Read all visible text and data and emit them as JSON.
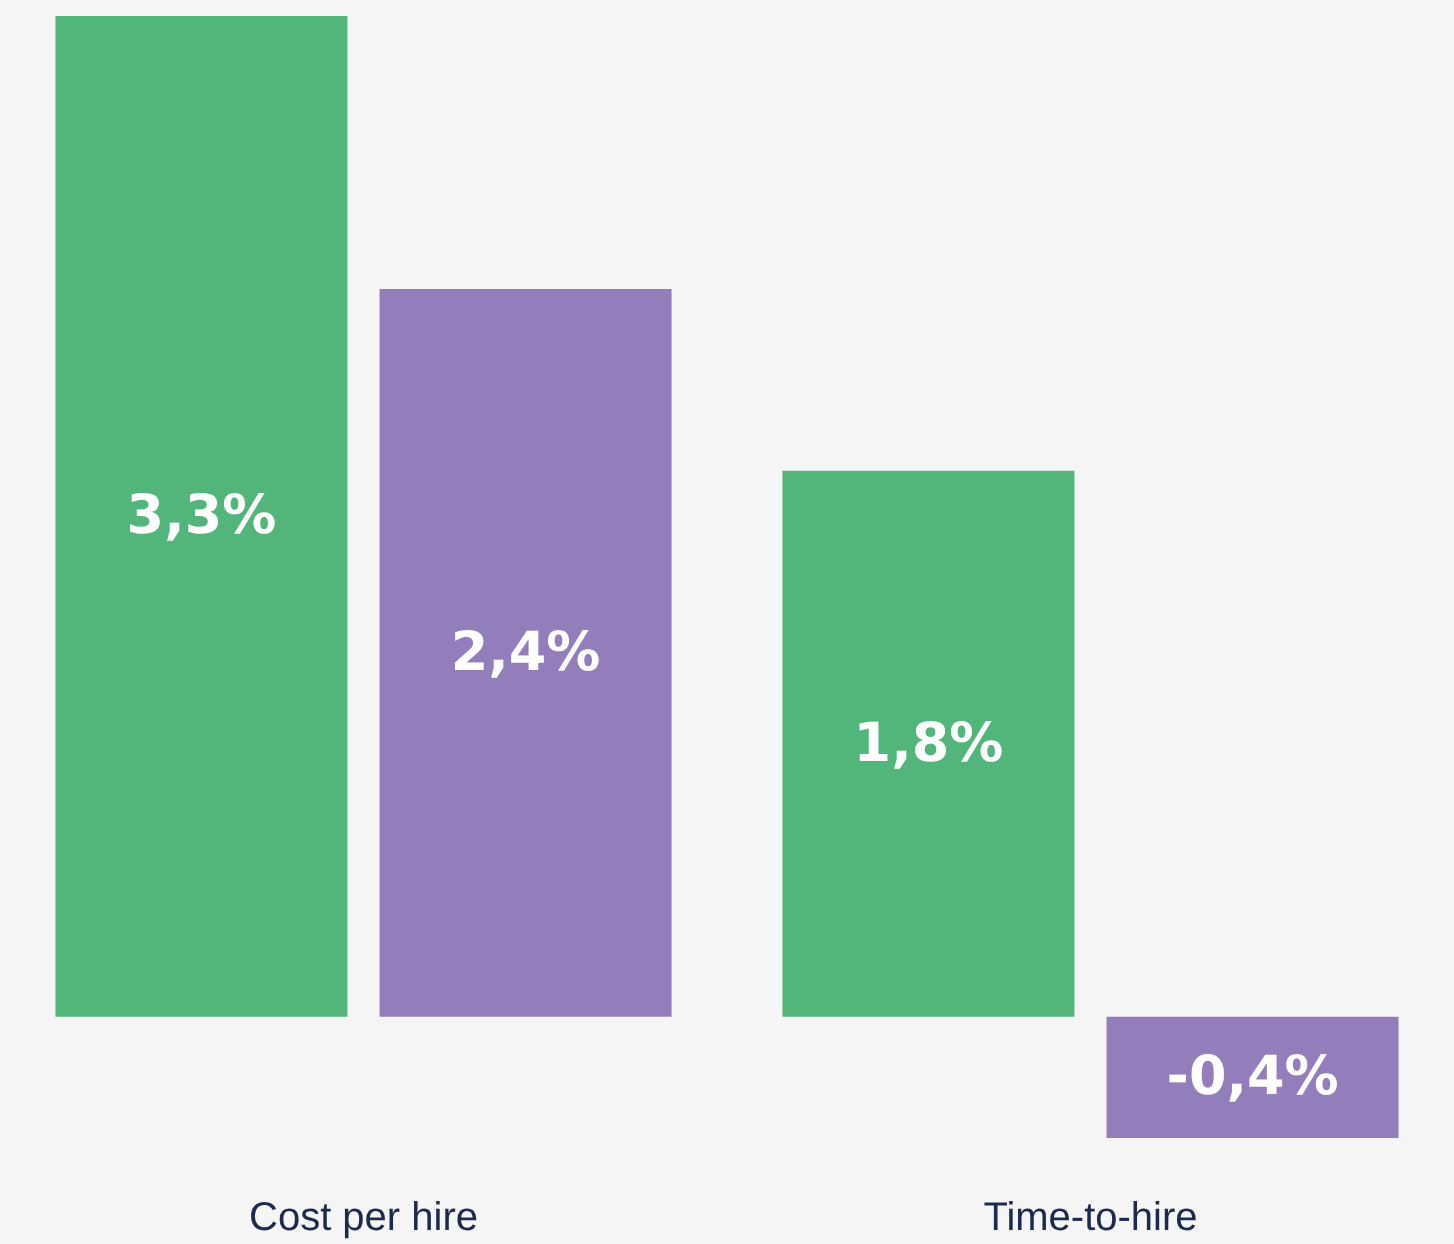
{
  "chart_data": {
    "type": "bar",
    "categories": [
      "Cost per hire",
      "Time-to-hire"
    ],
    "series": [
      {
        "color": "#52b57a",
        "values": [
          3.3,
          1.8
        ],
        "value_labels": [
          "3,3%",
          "1,8%"
        ]
      },
      {
        "color": "#937dba",
        "values": [
          2.4,
          -0.4
        ],
        "value_labels": [
          "2,4%",
          "-0,4%"
        ]
      }
    ],
    "grid": false
  }
}
